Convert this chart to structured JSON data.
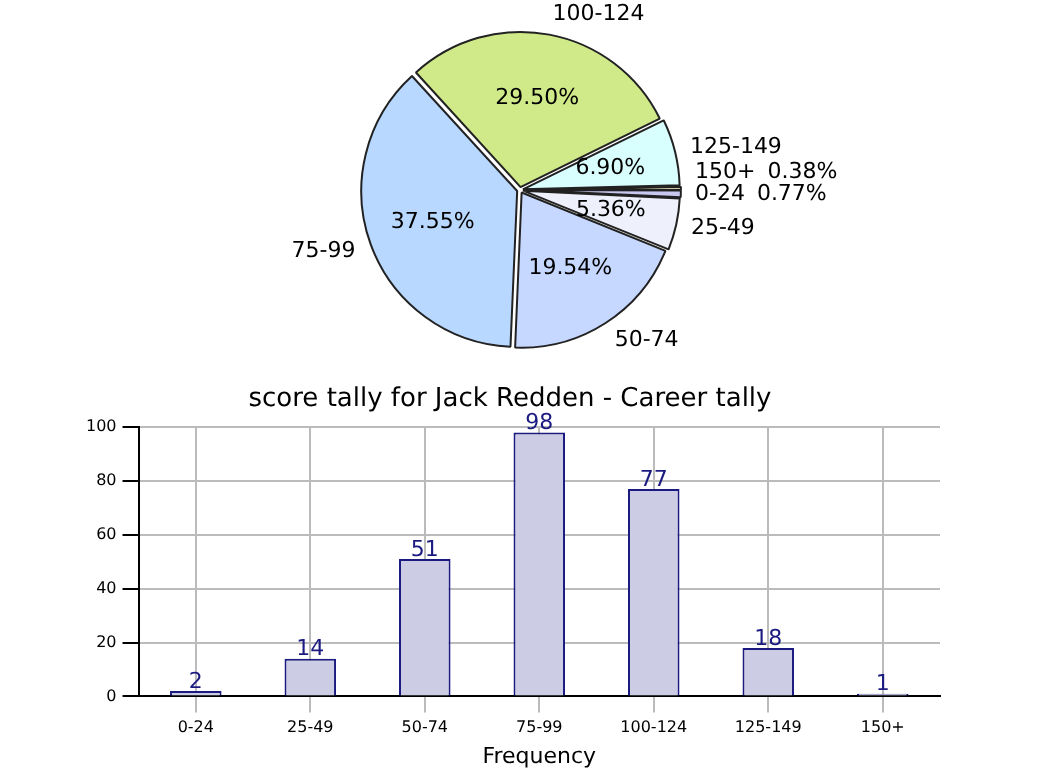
{
  "chart_data": [
    {
      "type": "pie",
      "categories": [
        "0-24",
        "25-49",
        "50-74",
        "75-99",
        "100-124",
        "125-149",
        "150+"
      ],
      "values": [
        0.77,
        5.36,
        19.54,
        37.55,
        29.5,
        6.9,
        0.38
      ],
      "value_labels": [
        "0.77%",
        "5.36%",
        "19.54%",
        "37.55%",
        "29.50%",
        "6.90%",
        "0.38%"
      ],
      "colors": [
        "#c8c8f0",
        "#eef0fc",
        "#c6d8ff",
        "#b8d8ff",
        "#d0ea8a",
        "#d8fefe",
        "#ffffcc"
      ]
    },
    {
      "type": "bar",
      "title": "score tally for Jack Redden - Career tally",
      "xlabel": "Frequency",
      "categories": [
        "0-24",
        "25-49",
        "50-74",
        "75-99",
        "100-124",
        "125-149",
        "150+"
      ],
      "values": [
        2,
        14,
        51,
        98,
        77,
        18,
        1
      ],
      "color": "#cccce4",
      "ylim": [
        0,
        100
      ],
      "yticks": [
        0,
        20,
        40,
        60,
        80,
        100
      ],
      "grid": true,
      "data_labels": true
    }
  ]
}
